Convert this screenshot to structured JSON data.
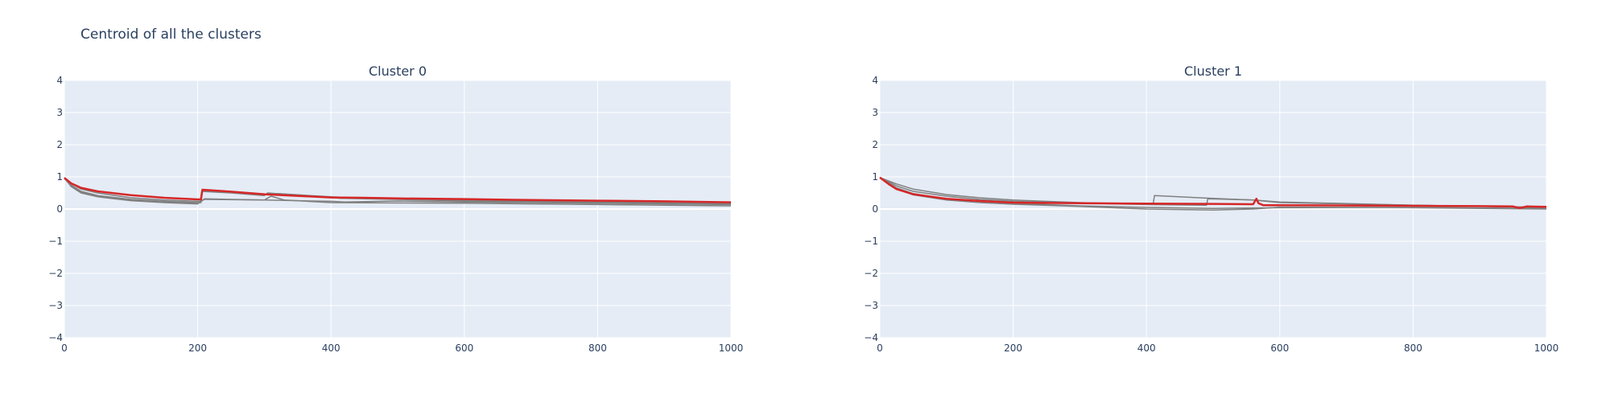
{
  "title": "Centroid of all the clusters",
  "colors": {
    "plot_bg": "#E5ECF6",
    "grid": "#ffffff",
    "member": "#808080",
    "centroid": "#d62728",
    "text": "#2a3f5f"
  },
  "chart_data": [
    {
      "type": "line",
      "title": "Cluster 0",
      "xlim": [
        0,
        1000
      ],
      "ylim": [
        -4,
        4
      ],
      "x_ticks": [
        "0",
        "200",
        "400",
        "600",
        "800",
        "1000"
      ],
      "y_ticks": [
        "−4",
        "−3",
        "−2",
        "−1",
        "0",
        "1",
        "2",
        "3",
        "4"
      ],
      "grid": true,
      "series": [
        {
          "role": "member",
          "x": [
            0,
            10,
            25,
            50,
            100,
            150,
            200,
            204,
            206,
            250,
            300,
            305,
            400,
            415,
            420,
            500,
            600,
            800,
            1000
          ],
          "y": [
            0.95,
            0.8,
            0.62,
            0.5,
            0.35,
            0.28,
            0.24,
            0.24,
            0.55,
            0.5,
            0.42,
            0.5,
            0.36,
            0.33,
            0.33,
            0.3,
            0.25,
            0.2,
            0.16
          ]
        },
        {
          "role": "member",
          "x": [
            0,
            10,
            25,
            50,
            100,
            150,
            200,
            205,
            207,
            250,
            300,
            320,
            400,
            450,
            600,
            800,
            1000
          ],
          "y": [
            0.95,
            0.75,
            0.55,
            0.42,
            0.3,
            0.24,
            0.2,
            0.2,
            0.58,
            0.52,
            0.45,
            0.48,
            0.38,
            0.34,
            0.28,
            0.22,
            0.17
          ]
        },
        {
          "role": "member",
          "x": [
            0,
            10,
            25,
            50,
            100,
            150,
            200,
            210,
            250,
            300,
            400,
            420,
            500,
            600,
            800,
            1000
          ],
          "y": [
            0.98,
            0.7,
            0.5,
            0.38,
            0.26,
            0.2,
            0.16,
            0.32,
            0.3,
            0.28,
            0.24,
            0.22,
            0.25,
            0.22,
            0.18,
            0.14
          ]
        },
        {
          "role": "member",
          "x": [
            0,
            10,
            25,
            50,
            100,
            150,
            200,
            210,
            300,
            310,
            330,
            400,
            600,
            800,
            1000
          ],
          "y": [
            0.95,
            0.72,
            0.52,
            0.4,
            0.28,
            0.22,
            0.18,
            0.3,
            0.28,
            0.4,
            0.28,
            0.2,
            0.18,
            0.14,
            0.1
          ]
        },
        {
          "role": "centroid",
          "x": [
            0,
            10,
            25,
            50,
            100,
            150,
            200,
            205,
            207,
            250,
            300,
            400,
            450,
            500,
            600,
            700,
            800,
            900,
            1000
          ],
          "y": [
            0.97,
            0.8,
            0.66,
            0.55,
            0.43,
            0.35,
            0.3,
            0.3,
            0.6,
            0.54,
            0.46,
            0.36,
            0.35,
            0.33,
            0.31,
            0.28,
            0.26,
            0.24,
            0.21
          ]
        }
      ]
    },
    {
      "type": "line",
      "title": "Cluster 1",
      "xlim": [
        0,
        1000
      ],
      "ylim": [
        -4,
        4
      ],
      "x_ticks": [
        "0",
        "200",
        "400",
        "600",
        "800",
        "1000"
      ],
      "y_ticks": [
        "−4",
        "−3",
        "−2",
        "−1",
        "0",
        "1",
        "2",
        "3",
        "4"
      ],
      "grid": true,
      "series": [
        {
          "role": "member",
          "x": [
            0,
            25,
            50,
            100,
            150,
            200,
            300,
            400,
            410,
            412,
            480,
            500,
            560,
            600,
            800,
            1000
          ],
          "y": [
            0.98,
            0.78,
            0.62,
            0.45,
            0.35,
            0.28,
            0.2,
            0.15,
            0.15,
            0.42,
            0.35,
            0.33,
            0.28,
            0.22,
            0.12,
            0.05
          ]
        },
        {
          "role": "member",
          "x": [
            0,
            25,
            50,
            100,
            150,
            200,
            300,
            400,
            490,
            492,
            560,
            600,
            800,
            1000
          ],
          "y": [
            0.98,
            0.72,
            0.55,
            0.4,
            0.3,
            0.24,
            0.18,
            0.14,
            0.12,
            0.32,
            0.28,
            0.2,
            0.12,
            0.05
          ]
        },
        {
          "role": "member",
          "x": [
            0,
            25,
            50,
            100,
            150,
            200,
            300,
            400,
            500,
            600,
            800,
            1000
          ],
          "y": [
            0.98,
            0.66,
            0.48,
            0.32,
            0.24,
            0.18,
            0.1,
            0.05,
            0.02,
            0.04,
            0.05,
            0.02
          ]
        },
        {
          "role": "member",
          "x": [
            0,
            25,
            50,
            100,
            150,
            200,
            300,
            400,
            500,
            560,
            600,
            800,
            1000
          ],
          "y": [
            0.98,
            0.62,
            0.44,
            0.28,
            0.2,
            0.15,
            0.08,
            0.0,
            -0.03,
            0.0,
            0.06,
            0.04,
            0.0
          ]
        },
        {
          "role": "centroid",
          "x": [
            0,
            15,
            25,
            50,
            100,
            150,
            200,
            300,
            400,
            500,
            560,
            565,
            568,
            575,
            600,
            700,
            800,
            900,
            950,
            960,
            970,
            1000
          ],
          "y": [
            0.98,
            0.75,
            0.62,
            0.46,
            0.32,
            0.25,
            0.2,
            0.18,
            0.17,
            0.16,
            0.15,
            0.32,
            0.18,
            0.12,
            0.12,
            0.11,
            0.1,
            0.09,
            0.08,
            0.03,
            0.08,
            0.07
          ]
        }
      ]
    }
  ]
}
